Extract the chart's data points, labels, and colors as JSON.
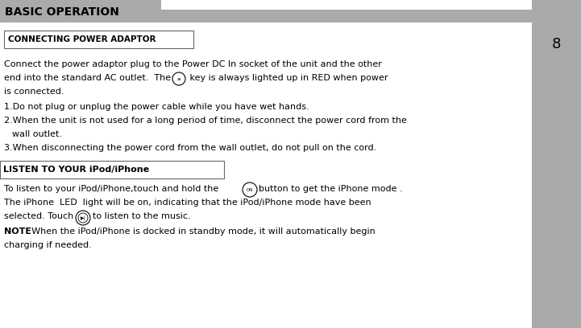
{
  "bg_color": "#ffffff",
  "header_bg": "#aaaaaa",
  "header_text": "BASIC OPERATION",
  "sidebar_bg": "#aaaaaa",
  "page_num": "8",
  "section1_label": "CONNECTING POWER ADAPTOR",
  "section2_label": "LISTEN TO YOUR iPod/iPhone",
  "note_bold": "NOTE",
  "note_rest": ": When the iPod/iPhone is docked in standby mode, it will automatically begin"
}
